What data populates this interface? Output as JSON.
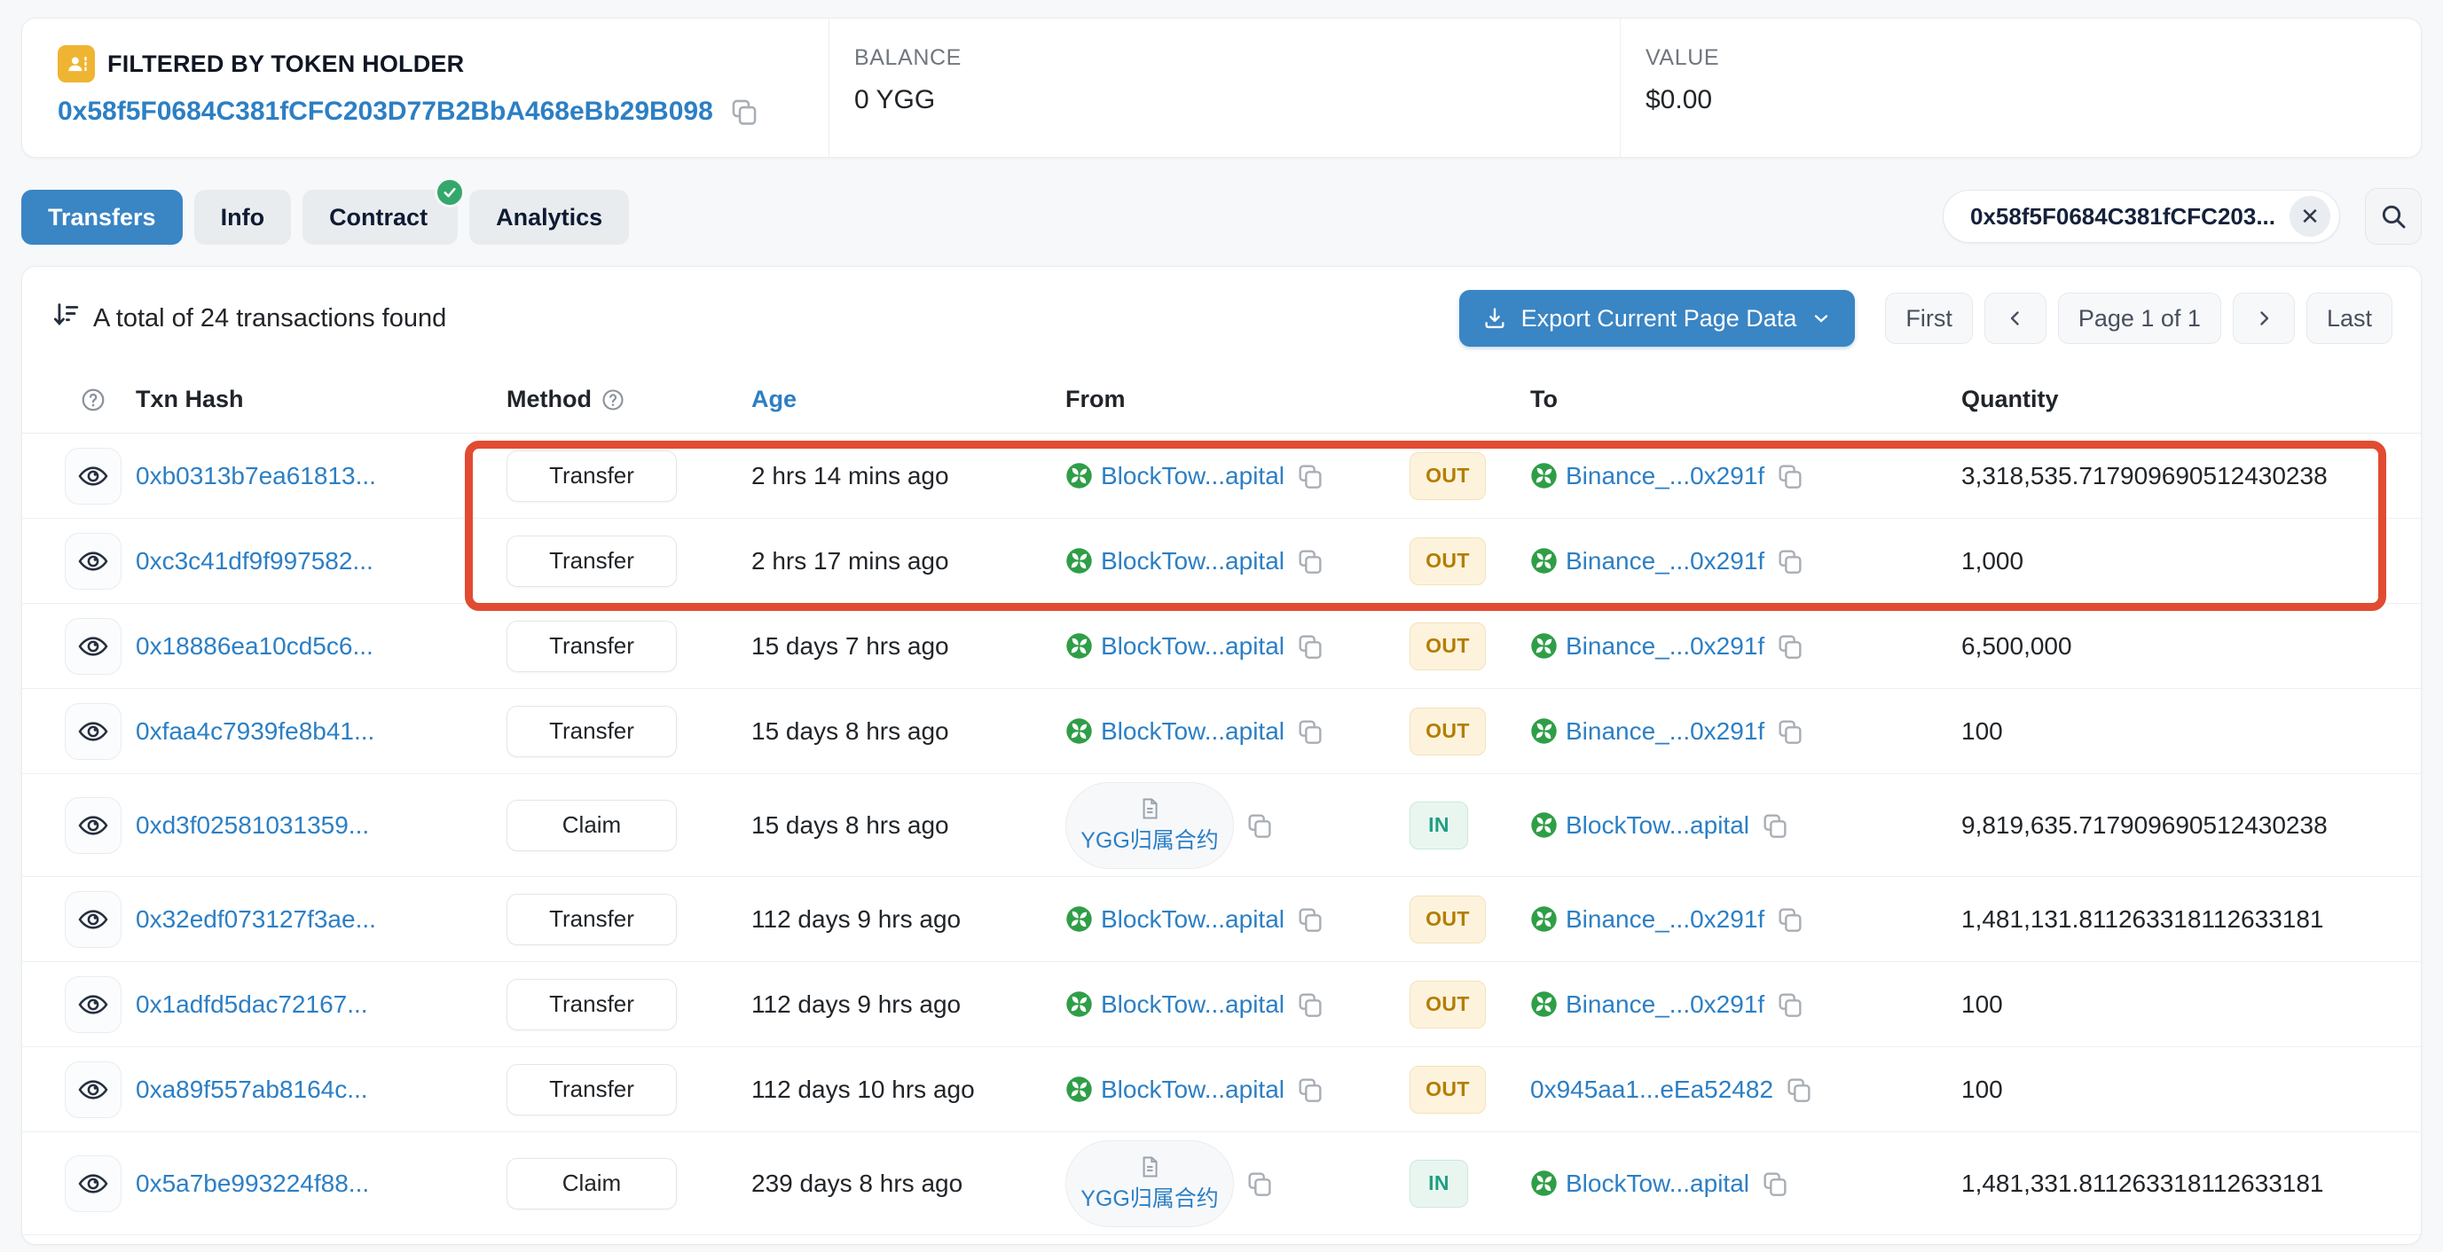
{
  "filter_bar": {
    "label": "FILTERED BY TOKEN HOLDER",
    "address": "0x58f5F0684C381fCFC203D77B2BbA468eBb29B098",
    "balance_label": "BALANCE",
    "balance_value": "0 YGG",
    "value_label": "VALUE",
    "value_value": "$0.00"
  },
  "tabs": [
    {
      "label": "Transfers",
      "active": true
    },
    {
      "label": "Info",
      "active": false
    },
    {
      "label": "Contract",
      "active": false,
      "verified": true
    },
    {
      "label": "Analytics",
      "active": false
    }
  ],
  "search": {
    "value": "0x58f5F0684C381fCFC203...",
    "clear_glyph": "✕"
  },
  "toolbar": {
    "total_text": "A total of 24 transactions found",
    "export_label": "Export Current Page Data",
    "pagination": {
      "first": "First",
      "page_label": "Page 1 of 1",
      "last": "Last"
    }
  },
  "table": {
    "headers": {
      "txn_hash": "Txn Hash",
      "method": "Method",
      "age": "Age",
      "from": "From",
      "to": "To",
      "quantity": "Quantity"
    },
    "rows": [
      {
        "hash": "0xb0313b7ea61813...",
        "method": "Transfer",
        "age": "2 hrs 14 mins ago",
        "from": "BlockTow...apital",
        "from_type": "contract",
        "direction": "OUT",
        "to": "Binance_...0x291f",
        "to_type": "contract",
        "quantity": "3,318,535.717909690512430238"
      },
      {
        "hash": "0xc3c41df9f997582...",
        "method": "Transfer",
        "age": "2 hrs 17 mins ago",
        "from": "BlockTow...apital",
        "from_type": "contract",
        "direction": "OUT",
        "to": "Binance_...0x291f",
        "to_type": "contract",
        "quantity": "1,000"
      },
      {
        "hash": "0x18886ea10cd5c6...",
        "method": "Transfer",
        "age": "15 days 7 hrs ago",
        "from": "BlockTow...apital",
        "from_type": "contract",
        "direction": "OUT",
        "to": "Binance_...0x291f",
        "to_type": "contract",
        "quantity": "6,500,000"
      },
      {
        "hash": "0xfaa4c7939fe8b41...",
        "method": "Transfer",
        "age": "15 days 8 hrs ago",
        "from": "BlockTow...apital",
        "from_type": "contract",
        "direction": "OUT",
        "to": "Binance_...0x291f",
        "to_type": "contract",
        "quantity": "100"
      },
      {
        "hash": "0xd3f02581031359...",
        "method": "Claim",
        "age": "15 days 8 hrs ago",
        "from": "YGG归属合约",
        "from_type": "vesting",
        "direction": "IN",
        "to": "BlockTow...apital",
        "to_type": "contract",
        "quantity": "9,819,635.717909690512430238"
      },
      {
        "hash": "0x32edf073127f3ae...",
        "method": "Transfer",
        "age": "112 days 9 hrs ago",
        "from": "BlockTow...apital",
        "from_type": "contract",
        "direction": "OUT",
        "to": "Binance_...0x291f",
        "to_type": "contract",
        "quantity": "1,481,131.811263318112633181"
      },
      {
        "hash": "0x1adfd5dac72167...",
        "method": "Transfer",
        "age": "112 days 9 hrs ago",
        "from": "BlockTow...apital",
        "from_type": "contract",
        "direction": "OUT",
        "to": "Binance_...0x291f",
        "to_type": "contract",
        "quantity": "100"
      },
      {
        "hash": "0xa89f557ab8164c...",
        "method": "Transfer",
        "age": "112 days 10 hrs ago",
        "from": "BlockTow...apital",
        "from_type": "contract",
        "direction": "OUT",
        "to": "0x945aa1...eEa52482",
        "to_type": "address",
        "quantity": "100"
      },
      {
        "hash": "0x5a7be993224f88...",
        "method": "Claim",
        "age": "239 days 8 hrs ago",
        "from": "YGG归属合约",
        "from_type": "vesting",
        "direction": "IN",
        "to": "BlockTow...apital",
        "to_type": "contract",
        "quantity": "1,481,331.811263318112633181"
      }
    ],
    "highlighted_rows": [
      0,
      1
    ]
  },
  "colors": {
    "accent_blue": "#3a85c4",
    "link_blue": "#2c7fc4",
    "out_badge_text": "#b47d00",
    "in_badge_text": "#1f9f82",
    "annotation_red": "#e14b32",
    "token_icon_green": "#2f9e47",
    "filter_icon_amber": "#efb432"
  }
}
